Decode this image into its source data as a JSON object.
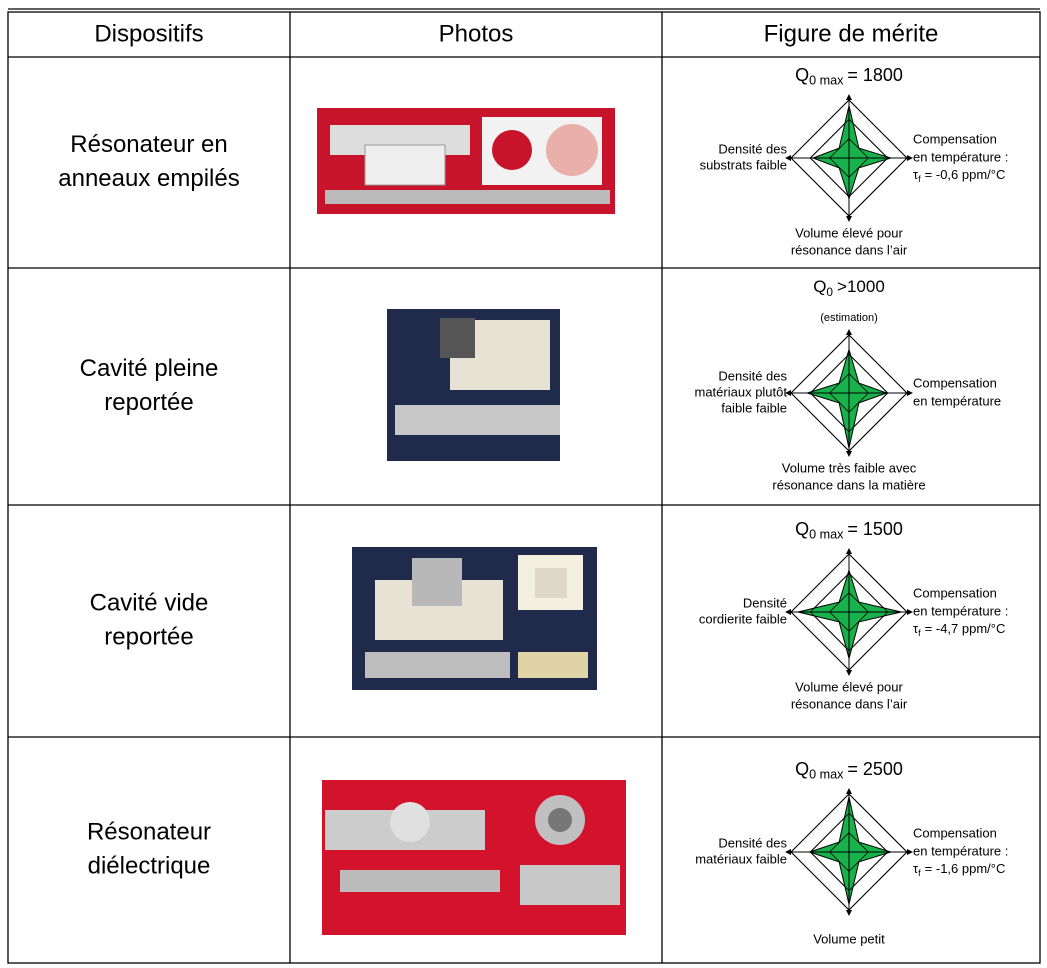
{
  "table": {
    "headers": [
      "Dispositifs",
      "Photos",
      "Figure de mérite"
    ],
    "rows": [
      {
        "device": [
          "Résonateur en",
          "anneaux empilés"
        ],
        "figure": {
          "top": {
            "symbol": "Q",
            "subscript": "0 max",
            "text": "= 1800"
          },
          "left": [
            "Densité des",
            "substrats faible"
          ],
          "right": [
            "Compensation",
            "en température :"
          ],
          "right_formula": {
            "symbol": "τ",
            "subscript": "f",
            "text": "= -0,6 ppm/°C"
          },
          "bottom": [
            "Volume élevé pour",
            "résonance dans l’air"
          ]
        }
      },
      {
        "device": [
          "Cavité pleine",
          "reportée"
        ],
        "figure": {
          "top": {
            "symbol": "Q",
            "subscript": "0",
            "text": ">1000"
          },
          "note": "(estimation)",
          "left": [
            "Densité des",
            "matériaux plutôt",
            "faible faible"
          ],
          "right": [
            "Compensation",
            "en température"
          ],
          "bottom": [
            "Volume très faible avec",
            "résonance dans la matière"
          ]
        }
      },
      {
        "device": [
          "Cavité vide",
          "reportée"
        ],
        "figure": {
          "top": {
            "symbol": "Q",
            "subscript": "0 max",
            "text": "= 1500"
          },
          "left": [
            "Densité",
            "cordierite faible"
          ],
          "right": [
            "Compensation",
            "en température :"
          ],
          "right_formula": {
            "symbol": "τ",
            "subscript": "f",
            "text": "= -4,7 ppm/°C"
          },
          "bottom": [
            "Volume élevé pour",
            "résonance dans l’air"
          ]
        }
      },
      {
        "device": [
          "Résonateur",
          "diélectrique"
        ],
        "figure": {
          "top": {
            "symbol": "Q",
            "subscript": "0 max",
            "text": "= 2500"
          },
          "left": [
            "Densité des",
            "matériaux faible"
          ],
          "right": [
            "Compensation",
            "en température :"
          ],
          "right_formula": {
            "symbol": "τ",
            "subscript": "f",
            "text": "= -1,6 ppm/°C"
          },
          "bottom": [
            "Volume petit"
          ]
        }
      }
    ]
  }
}
